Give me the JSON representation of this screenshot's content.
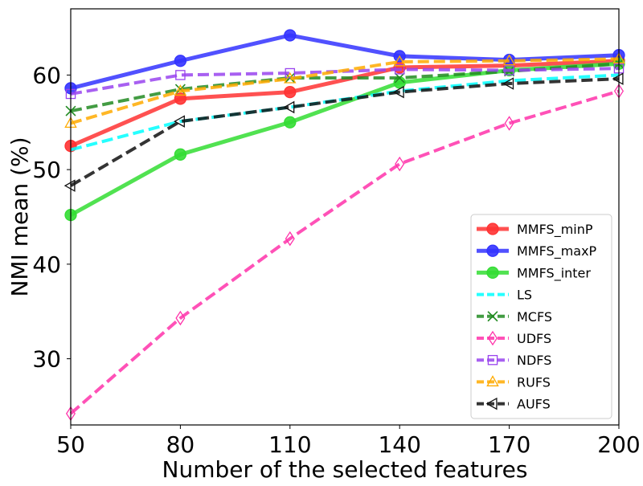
{
  "chart_data": {
    "type": "line",
    "xlabel": "Number of the selected features",
    "ylabel": "NMI mean (%)",
    "x": [
      50,
      80,
      110,
      140,
      170,
      200
    ],
    "x_tick_labels": [
      "50",
      "80",
      "110",
      "140",
      "170",
      "200"
    ],
    "y_ticks": [
      30,
      40,
      50,
      60
    ],
    "y_tick_labels": [
      "30",
      "40",
      "50",
      "60"
    ],
    "xlim": [
      50,
      200
    ],
    "ylim": [
      23,
      67
    ],
    "grid": false,
    "legend_position": "lower-right",
    "series": [
      {
        "name": "MMFS_minP",
        "values": [
          52.5,
          57.5,
          58.2,
          60.8,
          61.0,
          61.5
        ],
        "color": "#ff3333",
        "linestyle": "solid",
        "marker": "circle",
        "marker_filled": true
      },
      {
        "name": "MMFS_maxP",
        "values": [
          58.6,
          61.5,
          64.2,
          62.0,
          61.6,
          62.1
        ],
        "color": "#3333ff",
        "linestyle": "solid",
        "marker": "circle",
        "marker_filled": true
      },
      {
        "name": "MMFS_inter",
        "values": [
          45.2,
          51.6,
          55.0,
          59.2,
          60.5,
          61.2
        ],
        "color": "#33dd33",
        "linestyle": "solid",
        "marker": "circle",
        "marker_filled": true
      },
      {
        "name": "LS",
        "values": [
          52.1,
          55.1,
          56.6,
          58.3,
          59.4,
          60.0
        ],
        "color": "#00ffff",
        "linestyle": "dashed",
        "marker": "none",
        "marker_filled": false
      },
      {
        "name": "MCFS",
        "values": [
          56.2,
          58.5,
          59.7,
          59.7,
          60.4,
          61.2
        ],
        "color": "#228b22",
        "linestyle": "dashed",
        "marker": "x",
        "marker_filled": false
      },
      {
        "name": "UDFS",
        "values": [
          24.2,
          34.3,
          42.7,
          50.6,
          54.9,
          58.3
        ],
        "color": "#ff33aa",
        "linestyle": "dashed",
        "marker": "diamond",
        "marker_filled": false
      },
      {
        "name": "NDFS",
        "values": [
          58.0,
          60.0,
          60.2,
          60.6,
          60.5,
          60.7
        ],
        "color": "#9944ee",
        "linestyle": "dashed",
        "marker": "square",
        "marker_filled": false
      },
      {
        "name": "RUFS",
        "values": [
          54.9,
          58.3,
          59.6,
          61.4,
          61.5,
          61.7
        ],
        "color": "#ffaa00",
        "linestyle": "dashed",
        "marker": "triangle",
        "marker_filled": false
      },
      {
        "name": "AUFS",
        "values": [
          48.3,
          55.1,
          56.6,
          58.2,
          59.1,
          59.6
        ],
        "color": "#111111",
        "linestyle": "dashed",
        "marker": "triangle-left",
        "marker_filled": false
      }
    ]
  }
}
